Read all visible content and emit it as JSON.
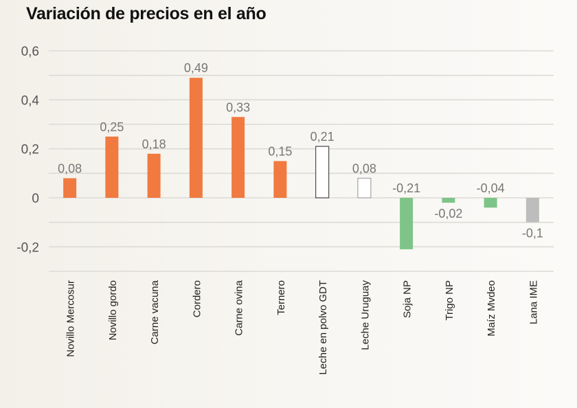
{
  "chart_data": {
    "type": "bar",
    "title": "Variación de precios en el año",
    "xlabel": "",
    "ylabel": "",
    "ylim": [
      -0.3,
      0.6
    ],
    "yticks": [
      0.6,
      0.4,
      0.2,
      0,
      -0.2
    ],
    "ytick_labels": [
      "0,6",
      "0,4",
      "0,2",
      "0",
      "-0,2"
    ],
    "gridlines": [
      0.6,
      0.5,
      0.4,
      0.3,
      0.2,
      0.1,
      0,
      -0.1,
      -0.2,
      -0.3
    ],
    "grid": true,
    "categories": [
      "Novillo Mercosur",
      "Novillo gordo",
      "Carne vacuna",
      "Cordero",
      "Carne ovina",
      "Ternero",
      "Leche en polvo GDT",
      "Leche Uruguay",
      "Soja NP",
      "Trigo NP",
      "Maíz Mvdeo",
      "Lana IME"
    ],
    "values": [
      0.08,
      0.25,
      0.18,
      0.49,
      0.33,
      0.15,
      0.21,
      0.08,
      -0.21,
      -0.02,
      -0.04,
      -0.1
    ],
    "value_labels": [
      "0,08",
      "0,25",
      "0,18",
      "0,49",
      "0,33",
      "0,15",
      "0,21",
      "0,08",
      "-0,21",
      "-0,02",
      "-0,04",
      "-0,1"
    ],
    "bar_groups": [
      "meat",
      "meat",
      "meat",
      "meat",
      "meat",
      "meat",
      "dairy",
      "dairy",
      "grain",
      "grain",
      "grain",
      "wool"
    ],
    "colors": {
      "meat": "#f07a3f",
      "dairy": "#ffffff",
      "dairy_stroke": "#555555",
      "grain": "#7ec488",
      "wool": "#bdbdbd",
      "grid": "#dcdad5"
    }
  }
}
